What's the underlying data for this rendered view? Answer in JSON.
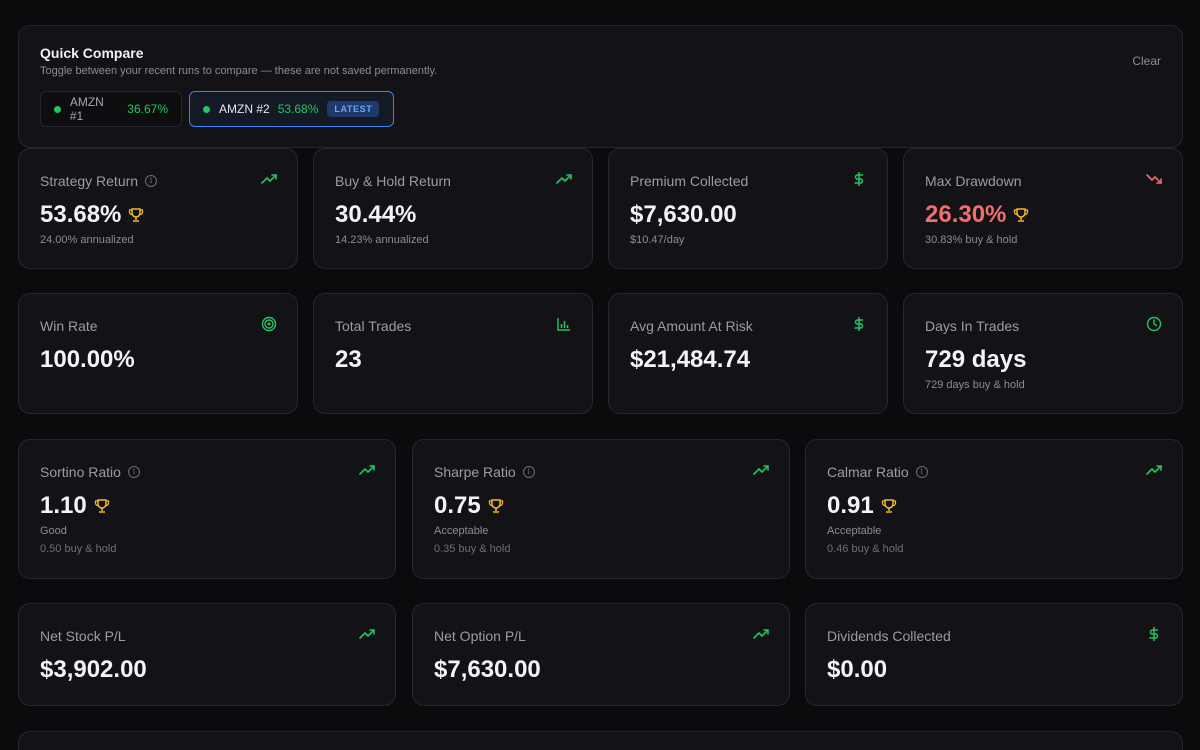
{
  "compare": {
    "title": "Quick Compare",
    "subtitle": "Toggle between your recent runs to compare — these are not saved permanently.",
    "clear_label": "Clear",
    "runs": [
      {
        "name": "AMZN #1",
        "pct": "36.67%"
      },
      {
        "name": "AMZN #2",
        "pct": "53.68%",
        "badge": "LATEST"
      }
    ]
  },
  "cards": {
    "strategy_return": {
      "label": "Strategy Return",
      "value": "53.68%",
      "sub1": "24.00% annualized"
    },
    "buy_hold_return": {
      "label": "Buy & Hold Return",
      "value": "30.44%",
      "sub1": "14.23% annualized"
    },
    "premium_collected": {
      "label": "Premium Collected",
      "value": "$7,630.00",
      "sub1": "$10.47/day"
    },
    "max_drawdown": {
      "label": "Max Drawdown",
      "value": "26.30%",
      "sub1": "30.83% buy & hold"
    },
    "win_rate": {
      "label": "Win Rate",
      "value": "100.00%"
    },
    "total_trades": {
      "label": "Total Trades",
      "value": "23"
    },
    "avg_amount_at_risk": {
      "label": "Avg Amount At Risk",
      "value": "$21,484.74"
    },
    "days_in_trades": {
      "label": "Days In Trades",
      "value": "729 days",
      "sub1": "729 days buy & hold"
    },
    "sortino_ratio": {
      "label": "Sortino Ratio",
      "value": "1.10",
      "sub1": "Good",
      "sub2": "0.50 buy & hold"
    },
    "sharpe_ratio": {
      "label": "Sharpe Ratio",
      "value": "0.75",
      "sub1": "Acceptable",
      "sub2": "0.35 buy & hold"
    },
    "calmar_ratio": {
      "label": "Calmar Ratio",
      "value": "0.91",
      "sub1": "Acceptable",
      "sub2": "0.46 buy & hold"
    },
    "net_stock_pl": {
      "label": "Net Stock P/L",
      "value": "$3,902.00"
    },
    "net_option_pl": {
      "label": "Net Option P/L",
      "value": "$7,630.00"
    },
    "dividends_collected": {
      "label": "Dividends Collected",
      "value": "$0.00"
    }
  },
  "colors": {
    "accent_green": "#22c55e",
    "negative_red": "#f26d6d",
    "trophy_gold": "#f5b82e",
    "latest_blue": "#3b82f6"
  },
  "icons": {
    "strategy_return": "trending-up-icon",
    "buy_hold_return": "trending-up-icon",
    "premium_collected": "dollar-icon",
    "max_drawdown": "trending-down-icon",
    "win_rate": "target-icon",
    "total_trades": "bar-chart-icon",
    "avg_amount_at_risk": "dollar-icon",
    "days_in_trades": "clock-icon",
    "ratios": "trending-up-icon",
    "trophy": "trophy-icon",
    "info": "info-icon"
  }
}
